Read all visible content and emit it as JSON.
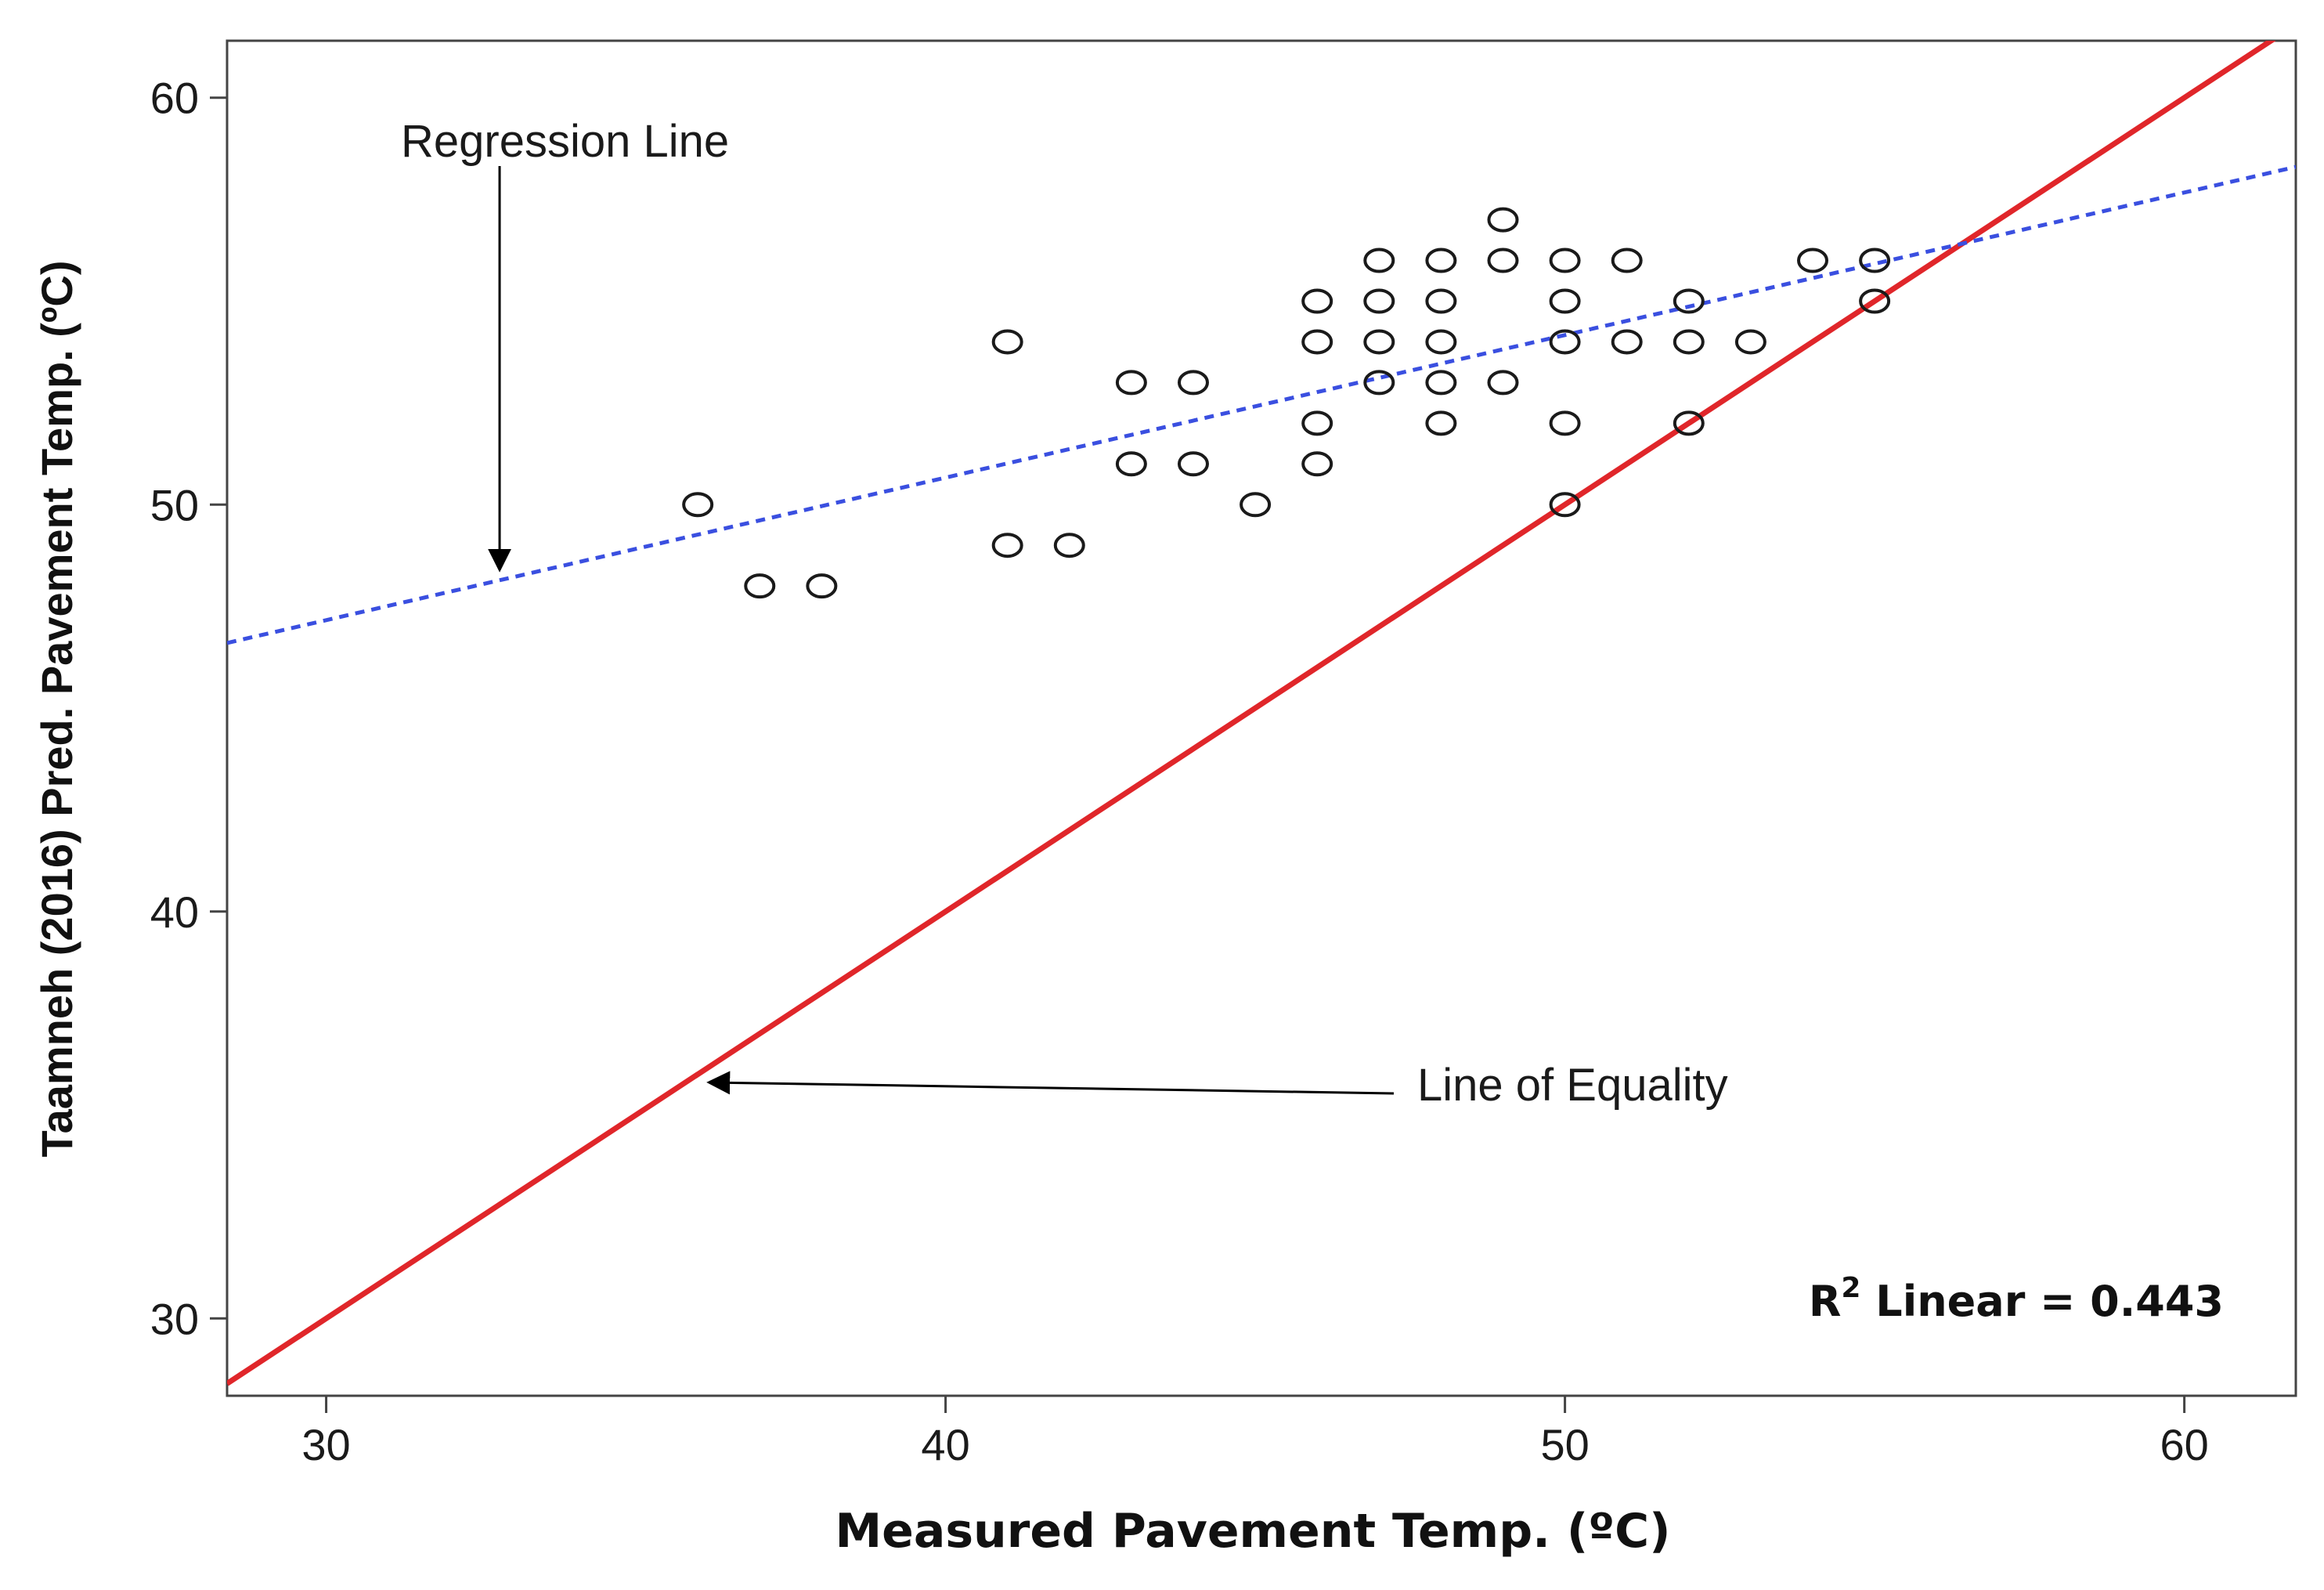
{
  "chart_data": {
    "type": "scatter",
    "xlabel": "Measured Pavement Temp. (ºC)",
    "ylabel": "Taamneh (2016) Pred. Pavement Temp. (ºC)",
    "xlim": [
      28.4,
      61.8
    ],
    "ylim": [
      28.1,
      61.4
    ],
    "x_ticks": [
      30,
      40,
      50,
      60
    ],
    "y_ticks": [
      30,
      40,
      50,
      60
    ],
    "x_tick_labels": [
      "30",
      "40",
      "50",
      "60"
    ],
    "y_tick_labels": [
      "30",
      "40",
      "50",
      "60"
    ],
    "grid": false,
    "points": [
      {
        "x": 36,
        "y": 50
      },
      {
        "x": 37,
        "y": 48
      },
      {
        "x": 38,
        "y": 48
      },
      {
        "x": 41,
        "y": 54
      },
      {
        "x": 41,
        "y": 49
      },
      {
        "x": 42,
        "y": 49
      },
      {
        "x": 43,
        "y": 53
      },
      {
        "x": 43,
        "y": 51
      },
      {
        "x": 44,
        "y": 53
      },
      {
        "x": 44,
        "y": 51
      },
      {
        "x": 45,
        "y": 50
      },
      {
        "x": 46,
        "y": 55
      },
      {
        "x": 46,
        "y": 54
      },
      {
        "x": 46,
        "y": 52
      },
      {
        "x": 46,
        "y": 51
      },
      {
        "x": 47,
        "y": 56
      },
      {
        "x": 47,
        "y": 55
      },
      {
        "x": 47,
        "y": 54
      },
      {
        "x": 47,
        "y": 53
      },
      {
        "x": 48,
        "y": 56
      },
      {
        "x": 48,
        "y": 55
      },
      {
        "x": 48,
        "y": 54
      },
      {
        "x": 48,
        "y": 53
      },
      {
        "x": 48,
        "y": 52
      },
      {
        "x": 49,
        "y": 57
      },
      {
        "x": 49,
        "y": 56
      },
      {
        "x": 49,
        "y": 53
      },
      {
        "x": 50,
        "y": 56
      },
      {
        "x": 50,
        "y": 55
      },
      {
        "x": 50,
        "y": 54
      },
      {
        "x": 50,
        "y": 52
      },
      {
        "x": 50,
        "y": 50
      },
      {
        "x": 51,
        "y": 56
      },
      {
        "x": 51,
        "y": 54
      },
      {
        "x": 52,
        "y": 55
      },
      {
        "x": 52,
        "y": 54
      },
      {
        "x": 52,
        "y": 52
      },
      {
        "x": 53,
        "y": 54
      },
      {
        "x": 54,
        "y": 56
      },
      {
        "x": 55,
        "y": 56
      },
      {
        "x": 55,
        "y": 55
      }
    ],
    "regression_line": {
      "name": "Regression Line",
      "x": [
        28.4,
        61.8
      ],
      "y": [
        46.6,
        58.3
      ],
      "color": "#3a4fe0",
      "style": "dotted"
    },
    "equality_line": {
      "name": "Line of Equality",
      "x": [
        28.4,
        61.8
      ],
      "y": [
        28.4,
        61.8
      ],
      "color": "#e0262a",
      "style": "solid"
    },
    "annotations": [
      {
        "text": "Regression Line",
        "arrow_to": {
          "x": 32.8,
          "y": 48.2
        }
      },
      {
        "text": "Line of Equality",
        "arrow_to": {
          "x": 36.0,
          "y": 35.8
        }
      }
    ],
    "r_squared": {
      "label": "R",
      "sup": "2",
      "text": " Linear = 0.443",
      "value": 0.443
    }
  }
}
